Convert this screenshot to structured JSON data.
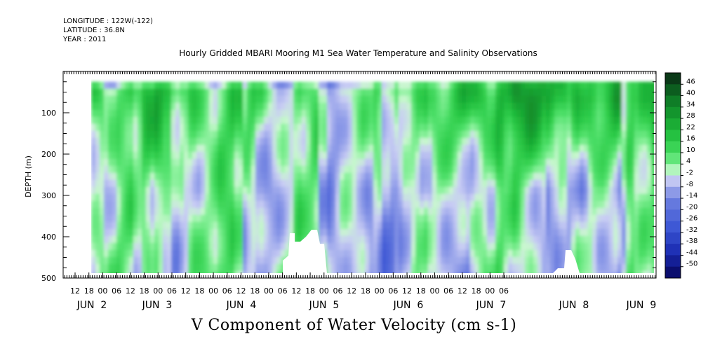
{
  "header": {
    "longitude": "LONGITUDE : 122W(-122)",
    "latitude": "LATITUDE : 36.8N",
    "year": "YEAR : 2011"
  },
  "chart_data": {
    "type": "heatmap",
    "title": "Hourly Gridded MBARI Mooring M1 Sea Water Temperature and Salinity Observations",
    "xlabel": "V Component of Water Velocity (cm s-1)",
    "ylabel": "DEPTH (m)",
    "ylim": [
      500,
      0
    ],
    "y_ticks": [
      100,
      200,
      300,
      400,
      500
    ],
    "x_hour_ticks": [
      "12",
      "18",
      "00",
      "06",
      "12",
      "18",
      "00",
      "06",
      "12",
      "18",
      "00",
      "06",
      "12",
      "18",
      "00",
      "06",
      "12",
      "18",
      "00",
      "06",
      "12",
      "18",
      "00",
      "06",
      "12",
      "18",
      "00",
      "06",
      "12",
      "18",
      "00",
      "06"
    ],
    "x_date_labels": [
      "JUN  2",
      "JUN  3",
      "JUN  4",
      "JUN  5",
      "JUN  6",
      "JUN  7",
      "JUN  8",
      "JUN  9"
    ],
    "data_depth_range": [
      25,
      485
    ],
    "colorbar": {
      "labels": [
        "46",
        "40",
        "34",
        "28",
        "22",
        "16",
        "10",
        "4",
        "-2",
        "-8",
        "-14",
        "-20",
        "-26",
        "-32",
        "-38",
        "-44",
        "-50"
      ],
      "min": -50,
      "max": 50
    },
    "bands_by_day": [
      {
        "day": "JUN 2",
        "upper_0_250m": "positive 10 to 22",
        "lower_250_485m": "mixed -8 to 10"
      },
      {
        "day": "JUN 3",
        "upper_0_250m": "positive 4 to 22",
        "lower_250_485m": "mixed -8 to 10"
      },
      {
        "day": "JUN 4",
        "upper_0_250m": "positive 4 to 16",
        "lower_250_485m": "mixed -8 to 10"
      },
      {
        "day": "JUN 5",
        "upper_0_250m": "mixed -8 to 16",
        "lower_250_485m": "negative -20 to 4"
      },
      {
        "day": "JUN 6",
        "upper_0_250m": "positive 10 to 22",
        "lower_250_485m": "mixed -14 to 10"
      },
      {
        "day": "JUN 7",
        "upper_0_250m": "positive 10 to 34",
        "lower_250_485m": "mixed -8 to 10"
      },
      {
        "day": "JUN 8",
        "upper_0_250m": "positive 10 to 34",
        "lower_250_485m": "mixed -14 to 10"
      },
      {
        "day": "JUN 9",
        "upper_0_250m": "positive 16 to 28",
        "lower_250_485m": "mixed -8 to 10"
      }
    ]
  },
  "colors": {
    "positive_max": "#0b3d16",
    "positive_mid": "#1fb83a",
    "positive_low": "#8ff2a0",
    "negative_low": "#c8ccf4",
    "negative_mid": "#6478de",
    "negative_max": "#0a0a6e"
  }
}
